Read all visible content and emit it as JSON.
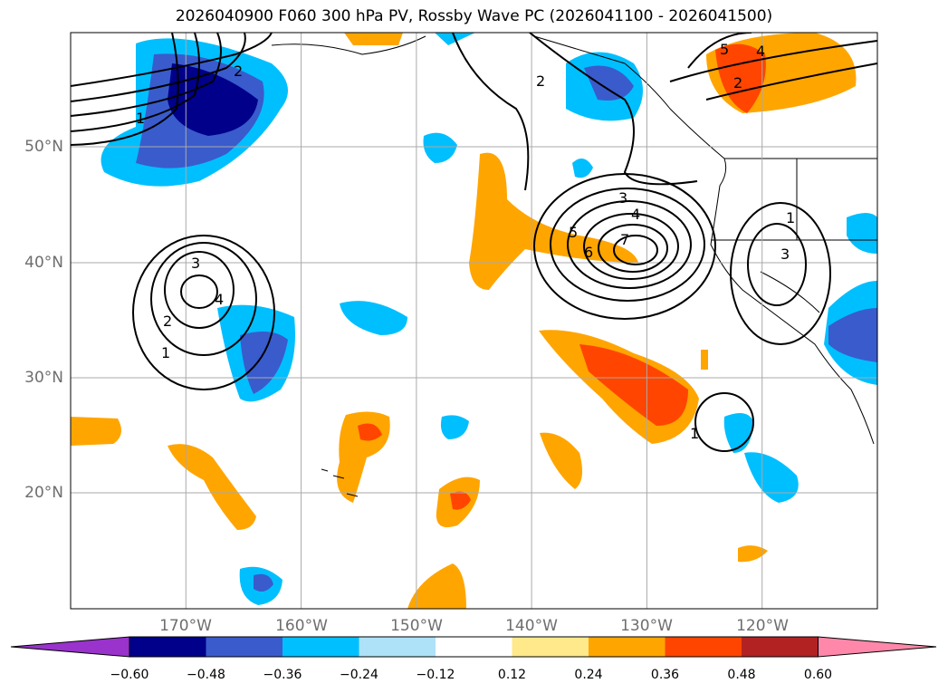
{
  "title": "2026040900 F060 300 hPa PV, Rossby Wave PC (2026041100 - 2026041500)",
  "map": {
    "lon_range": [
      -180,
      -110
    ],
    "lat_range": [
      10,
      60
    ],
    "lon_labels": [
      "170°W",
      "160°W",
      "150°W",
      "140°W",
      "130°W",
      "120°W"
    ],
    "lat_labels": [
      "50°N",
      "40°N",
      "30°N",
      "20°N"
    ],
    "contour_labels": [
      {
        "text": "1"
      },
      {
        "text": "2"
      },
      {
        "text": "3"
      },
      {
        "text": "4"
      },
      {
        "text": "2"
      },
      {
        "text": "1"
      },
      {
        "text": "2"
      },
      {
        "text": "3"
      },
      {
        "text": "4"
      },
      {
        "text": "5"
      },
      {
        "text": "6"
      },
      {
        "text": "7"
      },
      {
        "text": "1"
      },
      {
        "text": "3"
      },
      {
        "text": "1"
      },
      {
        "text": "5"
      },
      {
        "text": "4"
      },
      {
        "text": "2"
      }
    ]
  },
  "colorbar": {
    "ticks": [
      "−0.60",
      "−0.48",
      "−0.36",
      "−0.24",
      "−0.12",
      "0.12",
      "0.24",
      "0.36",
      "0.48",
      "0.60"
    ],
    "colors": [
      "#9933cc",
      "#00008b",
      "#3a5bcc",
      "#00bfff",
      "#aee2f8",
      "#ffffff",
      "#ffe98a",
      "#ffa500",
      "#ff4500",
      "#b22222",
      "#ff88aa"
    ]
  }
}
